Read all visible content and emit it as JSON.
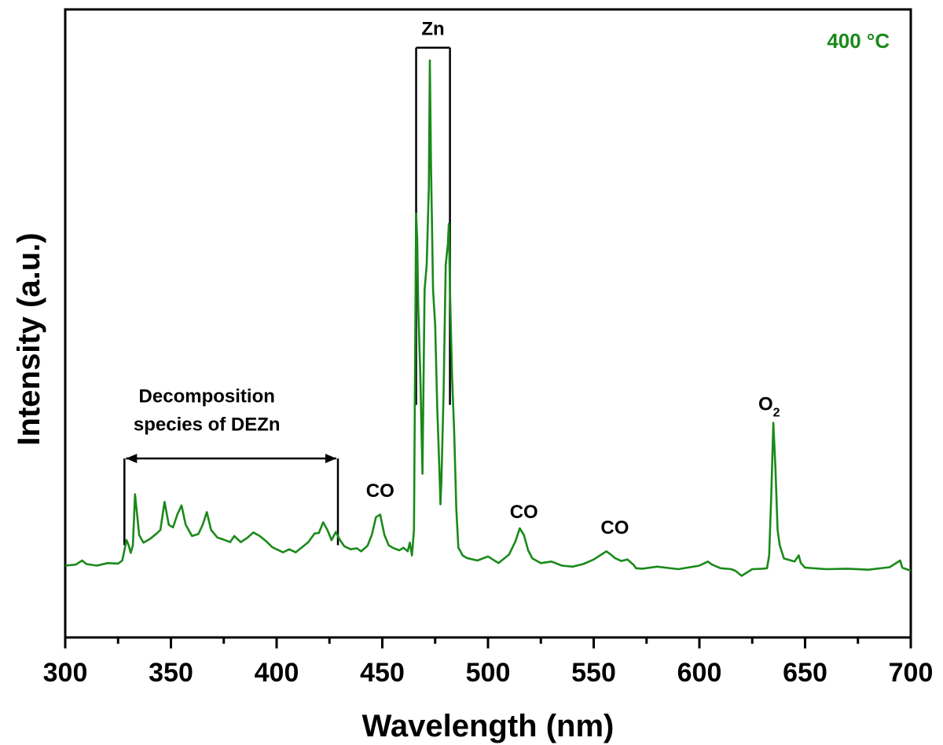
{
  "chart_data": {
    "type": "line",
    "title": "",
    "xlabel": "Wavelength (nm)",
    "ylabel": "Intensity (a.u.)",
    "xlim": [
      300,
      700
    ],
    "ylim": [
      0,
      100
    ],
    "xticks": [
      300,
      350,
      400,
      450,
      500,
      550,
      600,
      650,
      700
    ],
    "x_minor_step": 25,
    "grid": false,
    "legend": "top-right",
    "series_color": "#1a8a1a",
    "series": [
      {
        "name": "400 °C",
        "x": [
          300,
          305,
          308,
          310,
          315,
          320,
          325,
          327,
          328,
          329,
          330,
          331,
          332,
          333,
          334,
          335,
          337,
          340,
          343,
          345,
          347,
          349,
          351,
          353,
          355,
          357,
          360,
          363,
          365,
          367,
          369,
          372,
          375,
          378,
          380,
          383,
          386,
          389,
          392,
          395,
          398,
          400,
          403,
          406,
          409,
          412,
          415,
          418,
          420,
          422,
          424,
          426,
          428,
          430,
          432,
          435,
          438,
          440,
          443,
          445,
          447,
          449,
          451,
          453,
          455,
          458,
          460,
          462,
          463,
          464,
          465,
          466,
          466.5,
          467,
          468,
          469,
          470,
          471,
          472,
          472.5,
          473,
          474,
          475,
          476,
          477,
          477.5,
          478,
          479,
          480,
          481,
          481.5,
          482,
          483,
          484,
          485,
          486,
          487,
          488,
          490,
          495,
          500,
          505,
          510,
          513,
          515,
          517,
          519,
          521,
          525,
          530,
          535,
          540,
          545,
          550,
          553,
          556,
          558,
          560,
          563,
          566,
          569,
          570,
          573,
          580,
          590,
          600,
          604,
          606,
          610,
          615,
          617,
          620,
          625,
          630,
          632,
          633,
          634,
          635,
          636,
          637,
          638,
          640,
          645,
          647,
          648,
          650,
          660,
          670,
          680,
          690,
          695,
          696,
          700
        ],
        "values": [
          1,
          1.2,
          2,
          1.3,
          1,
          1.5,
          1.4,
          2,
          4,
          6,
          5,
          3.5,
          5,
          15,
          11,
          7,
          5.5,
          6.2,
          7.2,
          8,
          13.5,
          9,
          8.5,
          11,
          12.8,
          9,
          6.8,
          7.2,
          9,
          11.5,
          8,
          6.5,
          6.1,
          5.6,
          6.8,
          5.6,
          6.4,
          7.5,
          6.8,
          5.8,
          4.6,
          4.2,
          3.6,
          4.2,
          3.6,
          4.6,
          5.6,
          7.3,
          7.4,
          9.5,
          8,
          6,
          7.6,
          6,
          4.8,
          4.2,
          4.4,
          3.8,
          4.9,
          7,
          10.5,
          11,
          7,
          5,
          4.5,
          4,
          4.5,
          3.8,
          5.5,
          3,
          8,
          70,
          65,
          52,
          38,
          19,
          55,
          60,
          75,
          100,
          80,
          55,
          48,
          32,
          20,
          13,
          18,
          35,
          60,
          64,
          68,
          55,
          38,
          27,
          12,
          4.5,
          3.8,
          3,
          2.5,
          2,
          2.8,
          1.5,
          3.2,
          5.8,
          8.3,
          7,
          4,
          2.4,
          1.5,
          1.8,
          1,
          0.8,
          1.3,
          2.2,
          3,
          3.8,
          3.2,
          2.5,
          1.9,
          2.2,
          1.1,
          0.5,
          0.4,
          0.8,
          0.3,
          1,
          1.8,
          1.2,
          0.5,
          0.3,
          0,
          -1,
          0.3,
          0.4,
          0.5,
          3,
          15,
          29,
          20,
          8,
          5,
          2.4,
          1.8,
          3,
          1.5,
          0.6,
          0.3,
          0.4,
          0.2,
          0.7,
          2,
          0.6,
          0
        ]
      }
    ],
    "annotations": [
      {
        "text": "Decomposition",
        "x": 367,
        "y": 33
      },
      {
        "text": "species of DEZn",
        "x": 367,
        "y": 27.5
      },
      {
        "text": "CO",
        "x": 449,
        "y": 14.5
      },
      {
        "text": "Zn",
        "x": 474,
        "y": 105
      },
      {
        "text": "CO",
        "x": 517,
        "y": 10.3
      },
      {
        "text": "CO",
        "x": 560,
        "y": 7.2
      },
      {
        "text": "O",
        "sub": "2",
        "x": 633,
        "y": 31.5
      },
      {
        "text": "400 °C",
        "x": 690,
        "y": 102.5
      }
    ],
    "brackets": [
      {
        "label": "Decomposition species of DEZn",
        "x1": 328,
        "x2": 429,
        "y": 22,
        "drop": 17
      },
      {
        "label": "Zn",
        "x1": 466,
        "x2": 482,
        "y": 102.5,
        "drop": 70
      }
    ]
  }
}
